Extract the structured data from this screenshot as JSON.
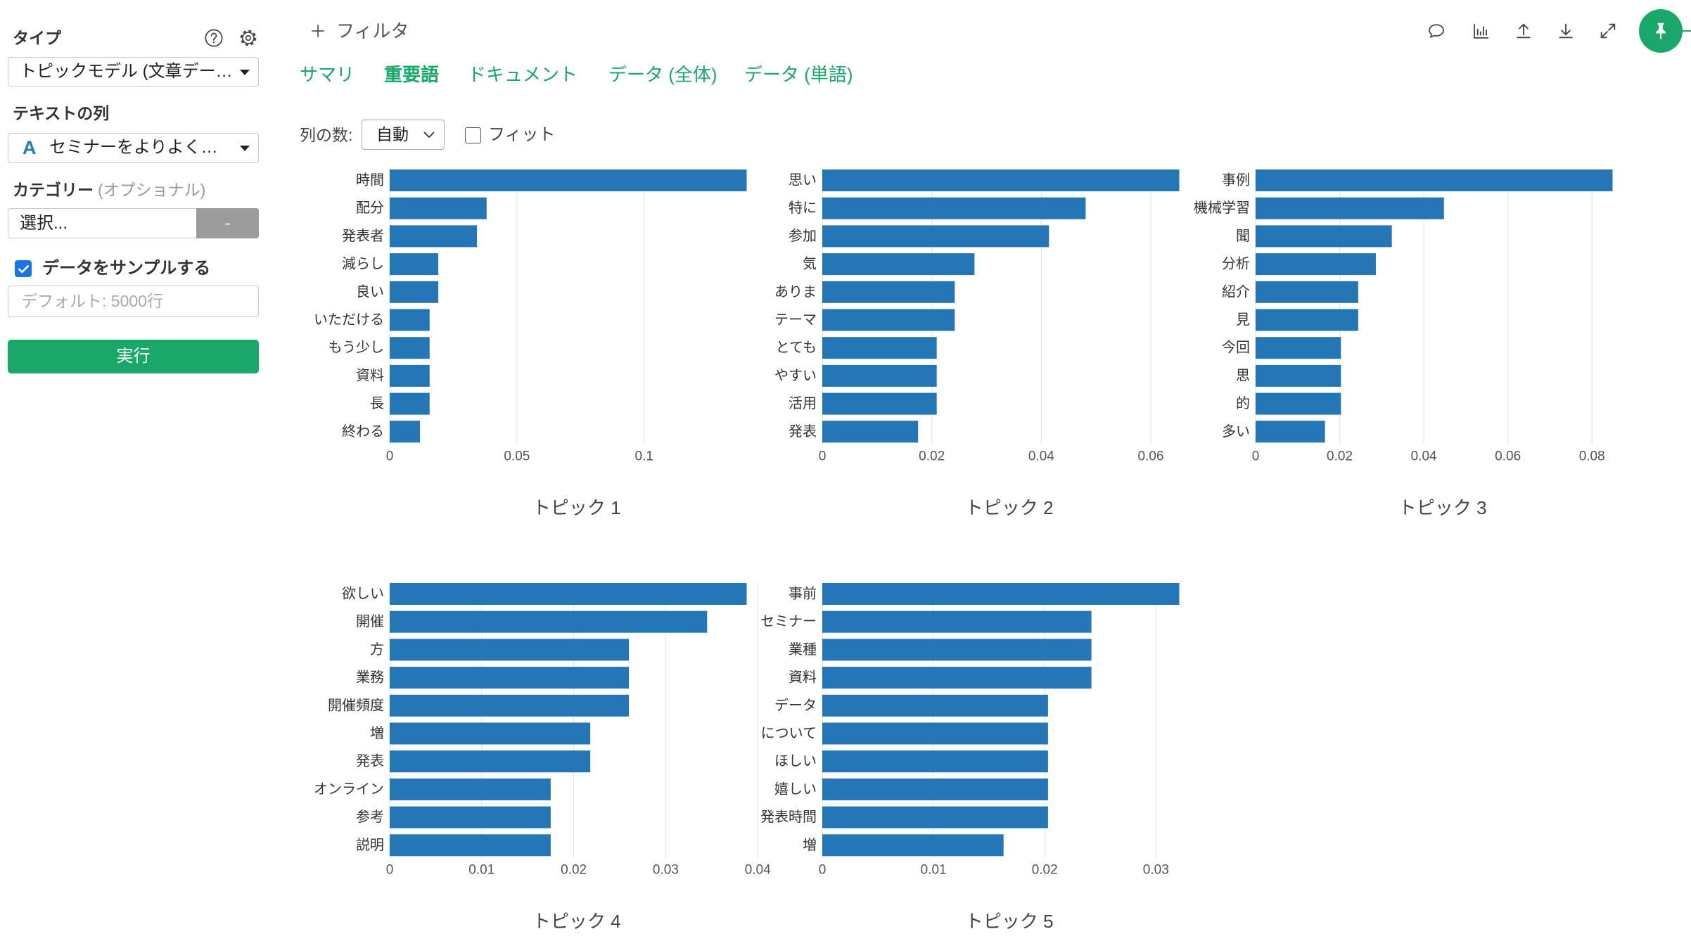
{
  "sidebar": {
    "type": {
      "label": "タイプ",
      "help_icon": "help-circle-icon",
      "settings_icon": "gear-icon",
      "value": "トピックモデル (文章データ)"
    },
    "text_column": {
      "label": "テキストの列",
      "type_glyph": "A",
      "value": "セミナーをよりよくす…"
    },
    "category": {
      "label": "カテゴリー",
      "optional": "(オプショナル)",
      "value": "選択...",
      "button_label": "-"
    },
    "sample": {
      "label": "データをサンプルする",
      "checked": true,
      "placeholder": "デフォルト: 5000行"
    },
    "run_button": "実行"
  },
  "toolbar": {
    "filter_icon": "plus-icon",
    "filter_label": "フィルタ",
    "icons": [
      "comment-icon",
      "bar-chart-icon",
      "upload-icon",
      "download-icon",
      "expand-icon",
      "pin-icon"
    ]
  },
  "tabs": [
    {
      "label": "サマリ",
      "active": false
    },
    {
      "label": "重要語",
      "active": true
    },
    {
      "label": "ドキュメント",
      "active": false
    },
    {
      "label": "データ (全体)",
      "active": false
    },
    {
      "label": "データ (単語)",
      "active": false
    }
  ],
  "options": {
    "columns_label": "列の数:",
    "columns_value": "自動",
    "fit_label": "フィット",
    "fit_checked": false
  },
  "colors": {
    "accent": "#1aa86a",
    "bar": "#2476b6",
    "checkbox": "#1a73e8",
    "type_glyph": "#2a7bbd"
  },
  "chart_data": [
    {
      "type": "bar",
      "orientation": "horizontal",
      "title": "トピック 1",
      "categories": [
        "時間",
        "配分",
        "発表者",
        "減らし",
        "良い",
        "いただける",
        "もう少し",
        "資料",
        "長",
        "終わる"
      ],
      "values": [
        0.1403,
        0.0381,
        0.0343,
        0.0191,
        0.0191,
        0.0157,
        0.0157,
        0.0157,
        0.0157,
        0.0119
      ],
      "xticks": [
        0,
        0.05,
        0.1
      ],
      "xlim": [
        0,
        0.1403
      ],
      "grid": true
    },
    {
      "type": "bar",
      "orientation": "horizontal",
      "title": "トピック 2",
      "categories": [
        "思い",
        "特に",
        "参加",
        "気",
        "ありま",
        "テーマ",
        "とても",
        "やすい",
        "活用",
        "発表"
      ],
      "values": [
        0.0652,
        0.0481,
        0.0414,
        0.0278,
        0.0242,
        0.0242,
        0.0209,
        0.0209,
        0.0209,
        0.0175
      ],
      "xticks": [
        0,
        0.02,
        0.04,
        0.06
      ],
      "xlim": [
        0,
        0.0652
      ],
      "grid": true
    },
    {
      "type": "bar",
      "orientation": "horizontal",
      "title": "トピック 3",
      "categories": [
        "事例",
        "機械学習",
        "聞",
        "分析",
        "紹介",
        "見",
        "今回",
        "思",
        "的",
        "多い"
      ],
      "values": [
        0.0849,
        0.0448,
        0.0324,
        0.0286,
        0.0244,
        0.0244,
        0.0203,
        0.0203,
        0.0203,
        0.0165
      ],
      "xticks": [
        0,
        0.02,
        0.04,
        0.06,
        0.08
      ],
      "xlim": [
        0,
        0.0849
      ],
      "grid": true
    },
    {
      "type": "bar",
      "orientation": "horizontal",
      "title": "トピック 4",
      "categories": [
        "欲しい",
        "開催",
        "方",
        "業務",
        "開催頻度",
        "増",
        "発表",
        "オンライン",
        "参考",
        "説明"
      ],
      "values": [
        0.0388,
        0.0345,
        0.026,
        0.026,
        0.026,
        0.0218,
        0.0218,
        0.0175,
        0.0175,
        0.0175
      ],
      "xticks": [
        0,
        0.01,
        0.02,
        0.03,
        0.04
      ],
      "xlim": [
        0,
        0.04
      ],
      "grid": true
    },
    {
      "type": "bar",
      "orientation": "horizontal",
      "title": "トピック 5",
      "categories": [
        "事前",
        "セミナー",
        "業種",
        "資料",
        "データ",
        "について",
        "ほしい",
        "嬉しい",
        "発表時間",
        "増"
      ],
      "values": [
        0.0321,
        0.0242,
        0.0242,
        0.0242,
        0.0203,
        0.0203,
        0.0203,
        0.0203,
        0.0203,
        0.0163
      ],
      "xticks": [
        0,
        0.01,
        0.02,
        0.03
      ],
      "xlim": [
        0,
        0.0321
      ],
      "grid": true
    }
  ]
}
